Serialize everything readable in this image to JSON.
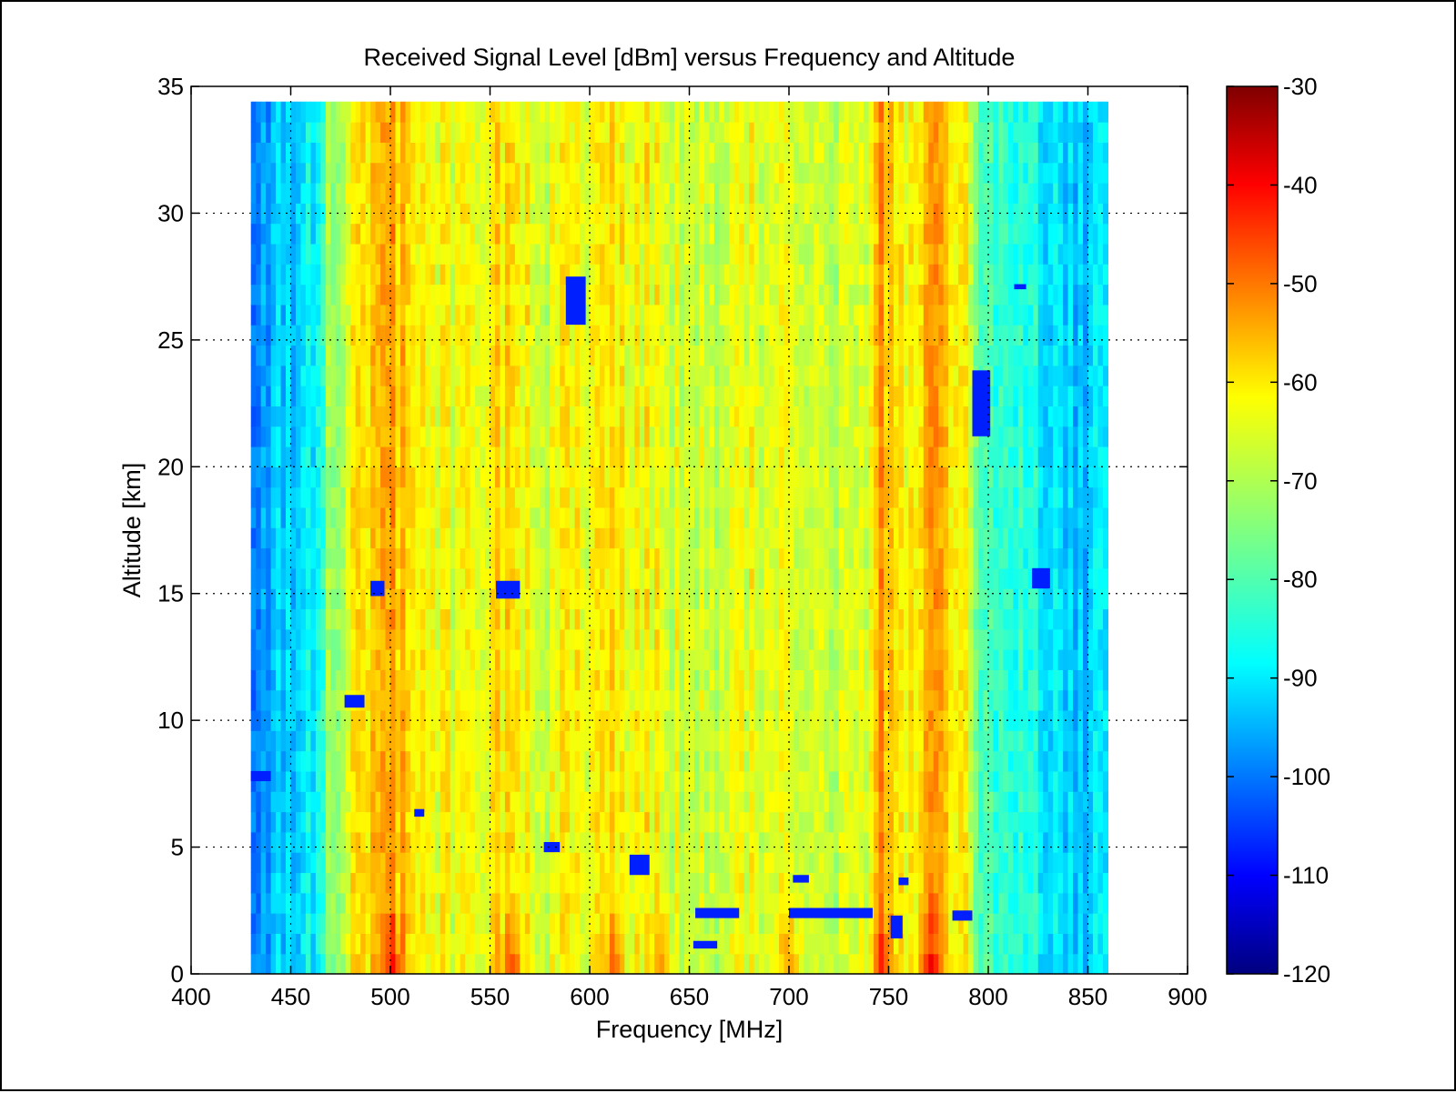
{
  "chart_data": {
    "type": "heatmap",
    "title": "Received Signal Level [dBm] versus Frequency and Altitude",
    "xlabel": "Frequency [MHz]",
    "ylabel": "Altitude [km]",
    "xlim": [
      400,
      900
    ],
    "ylim": [
      0,
      35
    ],
    "data_extent": {
      "x": [
        430,
        860
      ],
      "y": [
        0,
        34.4
      ]
    },
    "x_ticks": [
      400,
      450,
      500,
      550,
      600,
      650,
      700,
      750,
      800,
      850,
      900
    ],
    "y_ticks": [
      0,
      5,
      10,
      15,
      20,
      25,
      30,
      35
    ],
    "grid": true,
    "colorscale": "jet",
    "colorbar": {
      "range": [
        -120,
        -30
      ],
      "ticks": [
        -30,
        -40,
        -50,
        -60,
        -70,
        -80,
        -90,
        -100,
        -110,
        -120
      ]
    },
    "frequency_profile_dbm": [
      [
        430,
        -95
      ],
      [
        440,
        -93
      ],
      [
        450,
        -90
      ],
      [
        460,
        -88
      ],
      [
        465,
        -82
      ],
      [
        470,
        -72
      ],
      [
        480,
        -65
      ],
      [
        490,
        -60
      ],
      [
        500,
        -55
      ],
      [
        510,
        -60
      ],
      [
        520,
        -63
      ],
      [
        530,
        -66
      ],
      [
        540,
        -66
      ],
      [
        550,
        -63
      ],
      [
        560,
        -60
      ],
      [
        570,
        -65
      ],
      [
        580,
        -67
      ],
      [
        590,
        -63
      ],
      [
        600,
        -65
      ],
      [
        610,
        -62
      ],
      [
        620,
        -66
      ],
      [
        630,
        -63
      ],
      [
        640,
        -66
      ],
      [
        650,
        -68
      ],
      [
        660,
        -68
      ],
      [
        670,
        -69
      ],
      [
        680,
        -66
      ],
      [
        690,
        -68
      ],
      [
        700,
        -68
      ],
      [
        710,
        -67
      ],
      [
        720,
        -67
      ],
      [
        730,
        -69
      ],
      [
        740,
        -65
      ],
      [
        745,
        -55
      ],
      [
        750,
        -60
      ],
      [
        760,
        -63
      ],
      [
        770,
        -55
      ],
      [
        780,
        -62
      ],
      [
        790,
        -66
      ],
      [
        795,
        -80
      ],
      [
        800,
        -82
      ],
      [
        820,
        -84
      ],
      [
        840,
        -90
      ],
      [
        860,
        -90
      ]
    ],
    "low_altitude_enhancement": {
      "altitude_km": [
        0,
        3
      ],
      "peaks_mhz": [
        500,
        560,
        610,
        635,
        700,
        745,
        770
      ]
    },
    "dropout_regions": [
      {
        "x": [
          430,
          440
        ],
        "y": [
          7.6,
          8.0
        ]
      },
      {
        "x": [
          477,
          487
        ],
        "y": [
          10.5,
          11.0
        ]
      },
      {
        "x": [
          490,
          497
        ],
        "y": [
          14.9,
          15.5
        ]
      },
      {
        "x": [
          553,
          565
        ],
        "y": [
          14.8,
          15.5
        ]
      },
      {
        "x": [
          588,
          598
        ],
        "y": [
          25.6,
          27.5
        ]
      },
      {
        "x": [
          792,
          801
        ],
        "y": [
          21.2,
          23.8
        ]
      },
      {
        "x": [
          813,
          819
        ],
        "y": [
          27.0,
          27.2
        ]
      },
      {
        "x": [
          822,
          831
        ],
        "y": [
          15.2,
          16.0
        ]
      },
      {
        "x": [
          620,
          630
        ],
        "y": [
          3.9,
          4.7
        ]
      },
      {
        "x": [
          577,
          585
        ],
        "y": [
          4.8,
          5.2
        ]
      },
      {
        "x": [
          512,
          517
        ],
        "y": [
          6.2,
          6.5
        ]
      },
      {
        "x": [
          702,
          710
        ],
        "y": [
          3.6,
          3.9
        ]
      },
      {
        "x": [
          652,
          664
        ],
        "y": [
          1.0,
          1.3
        ]
      },
      {
        "x": [
          751,
          757
        ],
        "y": [
          1.4,
          2.3
        ]
      },
      {
        "x": [
          755,
          760
        ],
        "y": [
          3.5,
          3.8
        ]
      },
      {
        "x": [
          653,
          675
        ],
        "y": [
          2.2,
          2.6
        ]
      },
      {
        "x": [
          700,
          742
        ],
        "y": [
          2.2,
          2.6
        ]
      },
      {
        "x": [
          782,
          792
        ],
        "y": [
          2.1,
          2.5
        ]
      }
    ]
  }
}
